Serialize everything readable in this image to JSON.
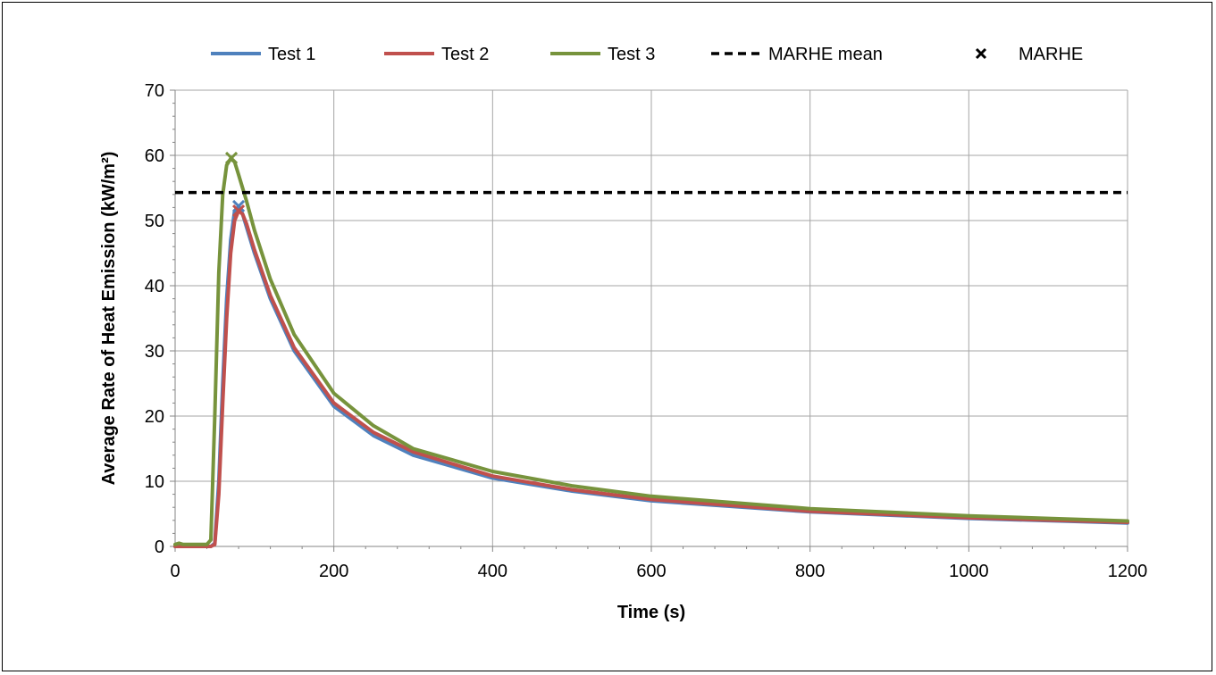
{
  "chart_data": {
    "type": "line",
    "xlabel": "Time (s)",
    "ylabel": "Average Rate of Heat Emission (kW/m²)",
    "xlim": [
      0,
      1200
    ],
    "ylim": [
      0,
      70
    ],
    "xticks": [
      0,
      200,
      400,
      600,
      800,
      1000,
      1200
    ],
    "yticks": [
      0,
      10,
      20,
      30,
      40,
      50,
      60,
      70
    ],
    "grid": true,
    "legend_position": "top",
    "series": [
      {
        "name": "Test 1",
        "color": "#4f81bd",
        "x": [
          0,
          10,
          20,
          30,
          40,
          45,
          50,
          55,
          60,
          65,
          70,
          75,
          80,
          85,
          90,
          100,
          120,
          150,
          200,
          250,
          300,
          400,
          500,
          600,
          800,
          1000,
          1200
        ],
        "y": [
          0,
          0,
          0,
          0,
          0,
          0,
          0.5,
          10,
          25,
          38,
          47,
          51.5,
          52,
          51,
          49,
          45,
          38,
          30,
          21.5,
          17,
          14,
          10.5,
          8.5,
          7,
          5.3,
          4.3,
          3.6
        ]
      },
      {
        "name": "Test 2",
        "color": "#c0504d",
        "x": [
          0,
          10,
          20,
          30,
          40,
          45,
          50,
          55,
          60,
          65,
          70,
          75,
          80,
          85,
          90,
          100,
          120,
          150,
          200,
          250,
          300,
          400,
          500,
          600,
          800,
          1000,
          1200
        ],
        "y": [
          0,
          0,
          0,
          0,
          0,
          0,
          0.3,
          8,
          22,
          35,
          45,
          50,
          51.5,
          51,
          49.5,
          45.5,
          38.5,
          30.5,
          22,
          17.5,
          14.5,
          10.8,
          8.7,
          7.2,
          5.4,
          4.4,
          3.7
        ]
      },
      {
        "name": "Test 3",
        "color": "#77933c",
        "x": [
          0,
          5,
          10,
          20,
          30,
          40,
          45,
          50,
          55,
          60,
          65,
          70,
          75,
          80,
          85,
          90,
          100,
          120,
          150,
          200,
          250,
          300,
          400,
          500,
          600,
          800,
          1000,
          1200
        ],
        "y": [
          0.3,
          0.5,
          0.3,
          0.3,
          0.3,
          0.3,
          1,
          20,
          42,
          54,
          58.5,
          59.5,
          59,
          57,
          55,
          53,
          48.5,
          41,
          32.5,
          23.5,
          18.5,
          15,
          11.5,
          9.3,
          7.7,
          5.8,
          4.7,
          3.9
        ]
      }
    ],
    "mean_line": {
      "name": "MARHE mean",
      "value": 54.3,
      "color": "#000000"
    },
    "markers": {
      "name": "MARHE",
      "points": [
        {
          "series": "Test 1",
          "x": 80,
          "y": 52.2,
          "color": "#4f81bd"
        },
        {
          "series": "Test 2",
          "x": 80,
          "y": 51.5,
          "color": "#c0504d"
        },
        {
          "series": "Test 3",
          "x": 71,
          "y": 59.6,
          "color": "#77933c"
        }
      ]
    }
  }
}
